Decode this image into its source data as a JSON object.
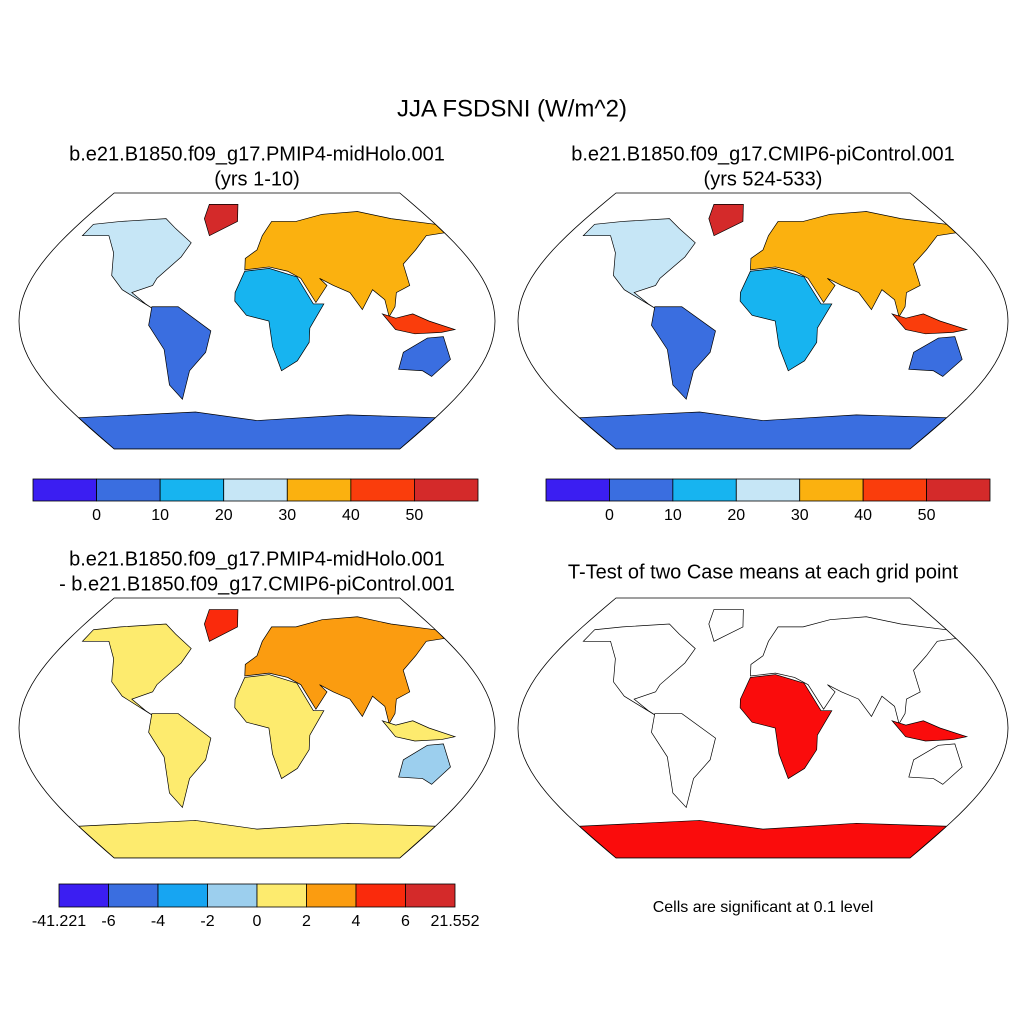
{
  "title": "JJA FSDSNI (W/m^2)",
  "panels": [
    {
      "title": [
        "b.e21.B1850.f09_g17.PMIP4-midHolo.001",
        "(yrs 1-10)"
      ],
      "colorbar": {
        "colors": [
          "#3b1ef2",
          "#3a6ee0",
          "#17b4f0",
          "#c6e6f6",
          "#fbb10f",
          "#fa3d0c",
          "#d42a2a"
        ],
        "labels": [
          0,
          10,
          20,
          30,
          40,
          50
        ]
      }
    },
    {
      "title": [
        "b.e21.B1850.f09_g17.CMIP6-piControl.001",
        "(yrs 524-533)"
      ],
      "colorbar": {
        "colors": [
          "#3b1ef2",
          "#3a6ee0",
          "#17b4f0",
          "#c6e6f6",
          "#fbb10f",
          "#fa3d0c",
          "#d42a2a"
        ],
        "labels": [
          0,
          10,
          20,
          30,
          40,
          50
        ]
      }
    },
    {
      "title": [
        "b.e21.B1850.f09_g17.PMIP4-midHolo.001",
        "- b.e21.B1850.f09_g17.CMIP6-piControl.001"
      ],
      "colorbar": {
        "colors": [
          "#3b1ef2",
          "#3a6ee0",
          "#17a5f2",
          "#9ccfee",
          "#fdeb6e",
          "#fb9c10",
          "#fa2a0c",
          "#d42a2a"
        ],
        "labels": [
          -41.221,
          -6,
          -4,
          -2,
          0,
          2,
          4,
          6,
          21.552
        ]
      }
    },
    {
      "title": [
        "T-Test of two Case means at each grid point"
      ],
      "note": "Cells are significant at 0.1 level"
    }
  ]
}
